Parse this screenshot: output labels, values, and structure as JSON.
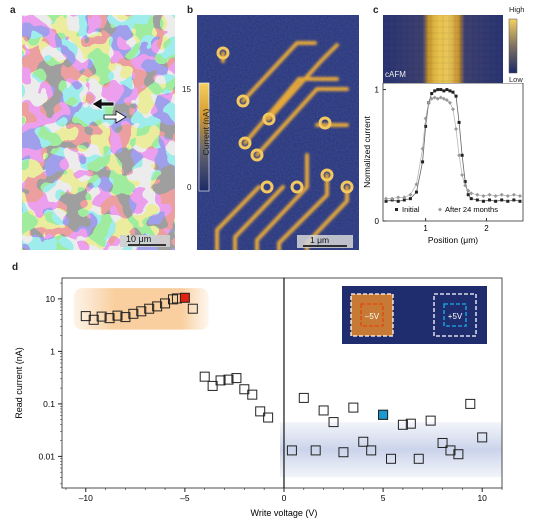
{
  "panels": {
    "a": {
      "label": "a",
      "scalebar": "10 μm"
    },
    "b": {
      "label": "b",
      "colorbar_label": "Current (nA)",
      "colorbar_ticks": [
        "15",
        "0"
      ],
      "scalebar": "1 μm"
    },
    "c": {
      "label": "c",
      "colorbar_high": "High",
      "colorbar_low": "Low",
      "inset_label": "cAFM",
      "chart_data": {
        "type": "line",
        "xlabel": "Position (μm)",
        "ylabel": "Normalized current",
        "xlim": [
          0.3,
          2.6
        ],
        "ylim": [
          0,
          1.05
        ],
        "xticks": [
          "1",
          "2"
        ],
        "yticks": [
          "0",
          "1"
        ],
        "legend_placement": "bottom",
        "series": [
          {
            "name": "Initial",
            "color": "#222222",
            "x": [
              0.35,
              0.45,
              0.55,
              0.65,
              0.75,
              0.85,
              0.95,
              1.0,
              1.05,
              1.1,
              1.15,
              1.2,
              1.25,
              1.3,
              1.35,
              1.4,
              1.45,
              1.5,
              1.55,
              1.6,
              1.65,
              1.7,
              1.75,
              1.85,
              1.95,
              2.05,
              2.15,
              2.25,
              2.35,
              2.45,
              2.55
            ],
            "y": [
              0.15,
              0.16,
              0.15,
              0.16,
              0.17,
              0.22,
              0.45,
              0.72,
              0.9,
              0.97,
              0.99,
              1.0,
              1.0,
              0.99,
              1.0,
              0.99,
              0.98,
              0.95,
              0.75,
              0.5,
              0.3,
              0.2,
              0.17,
              0.16,
              0.15,
              0.16,
              0.15,
              0.16,
              0.15,
              0.16,
              0.15
            ]
          },
          {
            "name": "After 24 months",
            "color": "#999999",
            "x": [
              0.35,
              0.45,
              0.55,
              0.65,
              0.75,
              0.85,
              0.95,
              1.0,
              1.05,
              1.1,
              1.15,
              1.2,
              1.25,
              1.3,
              1.35,
              1.4,
              1.45,
              1.5,
              1.55,
              1.6,
              1.65,
              1.7,
              1.75,
              1.85,
              1.95,
              2.05,
              2.15,
              2.25,
              2.35,
              2.45,
              2.55
            ],
            "y": [
              0.17,
              0.17,
              0.18,
              0.18,
              0.2,
              0.28,
              0.55,
              0.78,
              0.9,
              0.93,
              0.94,
              0.93,
              0.94,
              0.93,
              0.92,
              0.9,
              0.85,
              0.7,
              0.5,
              0.35,
              0.27,
              0.23,
              0.21,
              0.2,
              0.19,
              0.2,
              0.19,
              0.2,
              0.19,
              0.2,
              0.19
            ]
          }
        ]
      }
    },
    "d": {
      "label": "d",
      "inset_left_label": "–5V",
      "inset_right_label": "+5V",
      "chart_data": {
        "type": "scatter",
        "xlabel": "Write voltage (V)",
        "ylabel": "Read current (nA)",
        "xlim": [
          -11.2,
          11
        ],
        "ylim": [
          0.0025,
          25
        ],
        "yscale": "log",
        "xticks": [
          "–10",
          "–5",
          "0",
          "5",
          "10"
        ],
        "yticks": [
          "10",
          "1",
          "0.1",
          "0.01"
        ],
        "highlight_colors": {
          "negative": "#e05010",
          "positive": "#1a9ad0"
        },
        "series": [
          {
            "name": "",
            "points": [
              [
                -10,
                4.7
              ],
              [
                -9.6,
                4.0
              ],
              [
                -9.2,
                4.6
              ],
              [
                -8.8,
                4.3
              ],
              [
                -8.4,
                4.8
              ],
              [
                -8.0,
                4.5
              ],
              [
                -7.6,
                5.2
              ],
              [
                -7.2,
                5.8
              ],
              [
                -6.8,
                6.5
              ],
              [
                -6.4,
                7.2
              ],
              [
                -6.0,
                8.2
              ],
              [
                -5.6,
                9.8
              ],
              [
                -5.4,
                10.2
              ],
              [
                -4.6,
                6.5
              ],
              [
                -4.0,
                0.33
              ],
              [
                -3.6,
                0.22
              ],
              [
                -3.2,
                0.28
              ],
              [
                -2.8,
                0.29
              ],
              [
                -2.4,
                0.31
              ],
              [
                -2.0,
                0.19
              ],
              [
                -1.6,
                0.15
              ],
              [
                -1.2,
                0.072
              ],
              [
                -0.8,
                0.055
              ],
              [
                0.4,
                0.013
              ],
              [
                1.0,
                0.13
              ],
              [
                1.6,
                0.013
              ],
              [
                2.0,
                0.075
              ],
              [
                2.5,
                0.045
              ],
              [
                3.0,
                0.012
              ],
              [
                3.5,
                0.085
              ],
              [
                4.0,
                0.019
              ],
              [
                4.4,
                0.013
              ],
              [
                5.0,
                0.062
              ],
              [
                5.4,
                0.009
              ],
              [
                6.0,
                0.04
              ],
              [
                6.4,
                0.042
              ],
              [
                6.8,
                0.009
              ],
              [
                7.4,
                0.048
              ],
              [
                8.0,
                0.018
              ],
              [
                8.4,
                0.013
              ],
              [
                8.8,
                0.011
              ],
              [
                9.4,
                0.1
              ],
              [
                10.0,
                0.023
              ]
            ],
            "filled": [
              {
                "x": -5.0,
                "y": 10.5,
                "color": "#e02010"
              },
              {
                "x": 5.0,
                "y": 0.062,
                "color": "#1a9ad0"
              }
            ]
          }
        ]
      }
    }
  }
}
